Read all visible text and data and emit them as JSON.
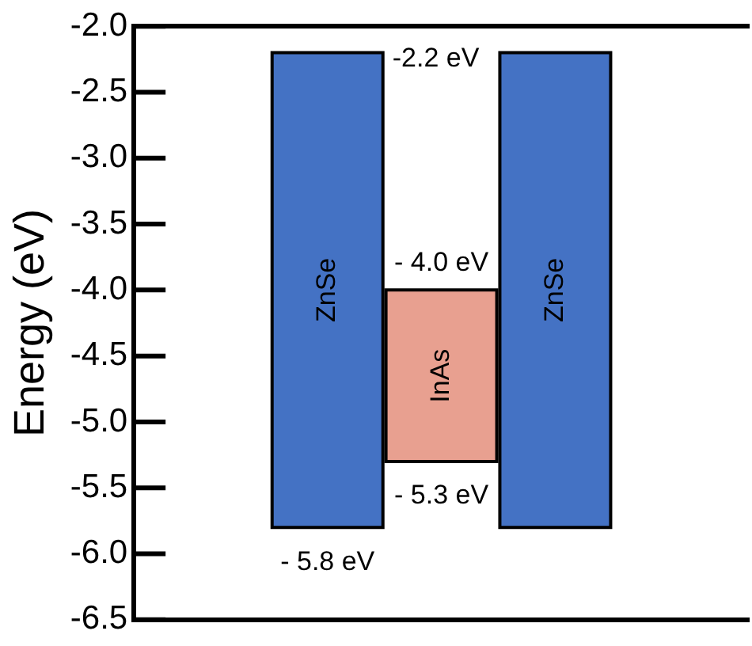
{
  "chart_data": {
    "type": "bar",
    "ylabel": "Energy (eV)",
    "categories": [
      "ZnSe",
      "InAs",
      "ZnSe"
    ],
    "values": [
      3.6,
      1.3,
      3.6
    ],
    "base": [
      -5.8,
      -5.3,
      -5.8
    ],
    "colors": [
      "#4472c4",
      "#e8a090",
      "#4472c4"
    ],
    "ylim": [
      -6.5,
      -2.0
    ],
    "yticks": [
      {
        "value": -6.5,
        "label": "-6.5"
      },
      {
        "value": -6,
        "label": "-6.0"
      },
      {
        "value": -5.5,
        "label": "-5.5"
      },
      {
        "value": -5,
        "label": "-5.0"
      },
      {
        "value": -4.5,
        "label": "-4.5"
      },
      {
        "value": -4,
        "label": "-4.0"
      },
      {
        "value": -3.5,
        "label": "-3.5"
      },
      {
        "value": -3,
        "label": "-3.0"
      },
      {
        "value": -2.5,
        "label": "-2.5"
      },
      {
        "value": -2,
        "label": "-2.0"
      }
    ],
    "tick_labels": "y",
    "grid": false,
    "legend": false,
    "annotations": [
      {
        "text": "-2.2 eV",
        "x": "ZnSe",
        "y": -2.2
      },
      {
        "text": "- 4.0 eV",
        "x": "InAs",
        "y": -4.0
      },
      {
        "text": "- 5.3 eV",
        "x": "InAs",
        "y": -5.3
      },
      {
        "text": "- 5.8 eV",
        "x": "ZnSe",
        "y": -5.8
      }
    ]
  }
}
